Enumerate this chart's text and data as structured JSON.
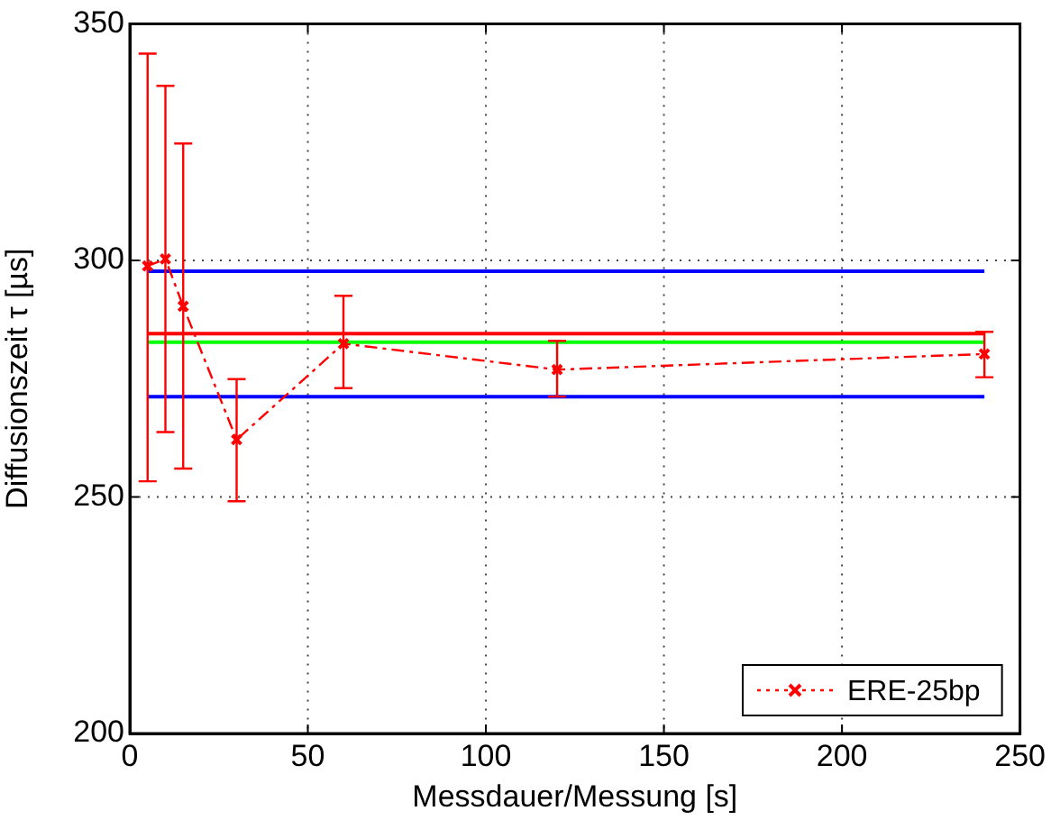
{
  "chart_data": {
    "type": "line",
    "xlabel": "Messdauer/Messung [s]",
    "ylabel": "Diffusionszeit τ [µs]",
    "xlim": [
      0,
      250
    ],
    "xticks": [
      0,
      50,
      100,
      150,
      200,
      250
    ],
    "ylim": [
      200,
      350
    ],
    "yticks": [
      200,
      250,
      300,
      350
    ],
    "grid": true,
    "legend": "bottom right",
    "series": [
      {
        "name": "ERE-25bp",
        "color": "#ff0000",
        "marker": "cross",
        "line_style": "dashed",
        "x": [
          5,
          10,
          15,
          30,
          60,
          120,
          240
        ],
        "values": [
          298.8,
          300.3,
          290.3,
          262.1,
          282.4,
          276.9,
          280.2
        ],
        "errors": [
          [
            253.3,
            343.7
          ],
          [
            263.7,
            336.9
          ],
          [
            256.0,
            324.7
          ],
          [
            249.1,
            274.9
          ],
          [
            273.0,
            292.5
          ],
          [
            271.2,
            283.0
          ],
          [
            275.3,
            284.9
          ]
        ]
      },
      {
        "color": "#0000ff",
        "x": [
          5,
          240
        ],
        "values": [
          297.7,
          297.7
        ]
      },
      {
        "color": "#ff0000",
        "x": [
          5,
          240
        ],
        "values": [
          284.5,
          284.5
        ]
      },
      {
        "color": "#00ff00",
        "x": [
          5,
          240
        ],
        "values": [
          282.7,
          282.7
        ]
      },
      {
        "color": "#0000ff",
        "x": [
          5,
          240
        ],
        "values": [
          271.2,
          271.2
        ]
      }
    ]
  }
}
